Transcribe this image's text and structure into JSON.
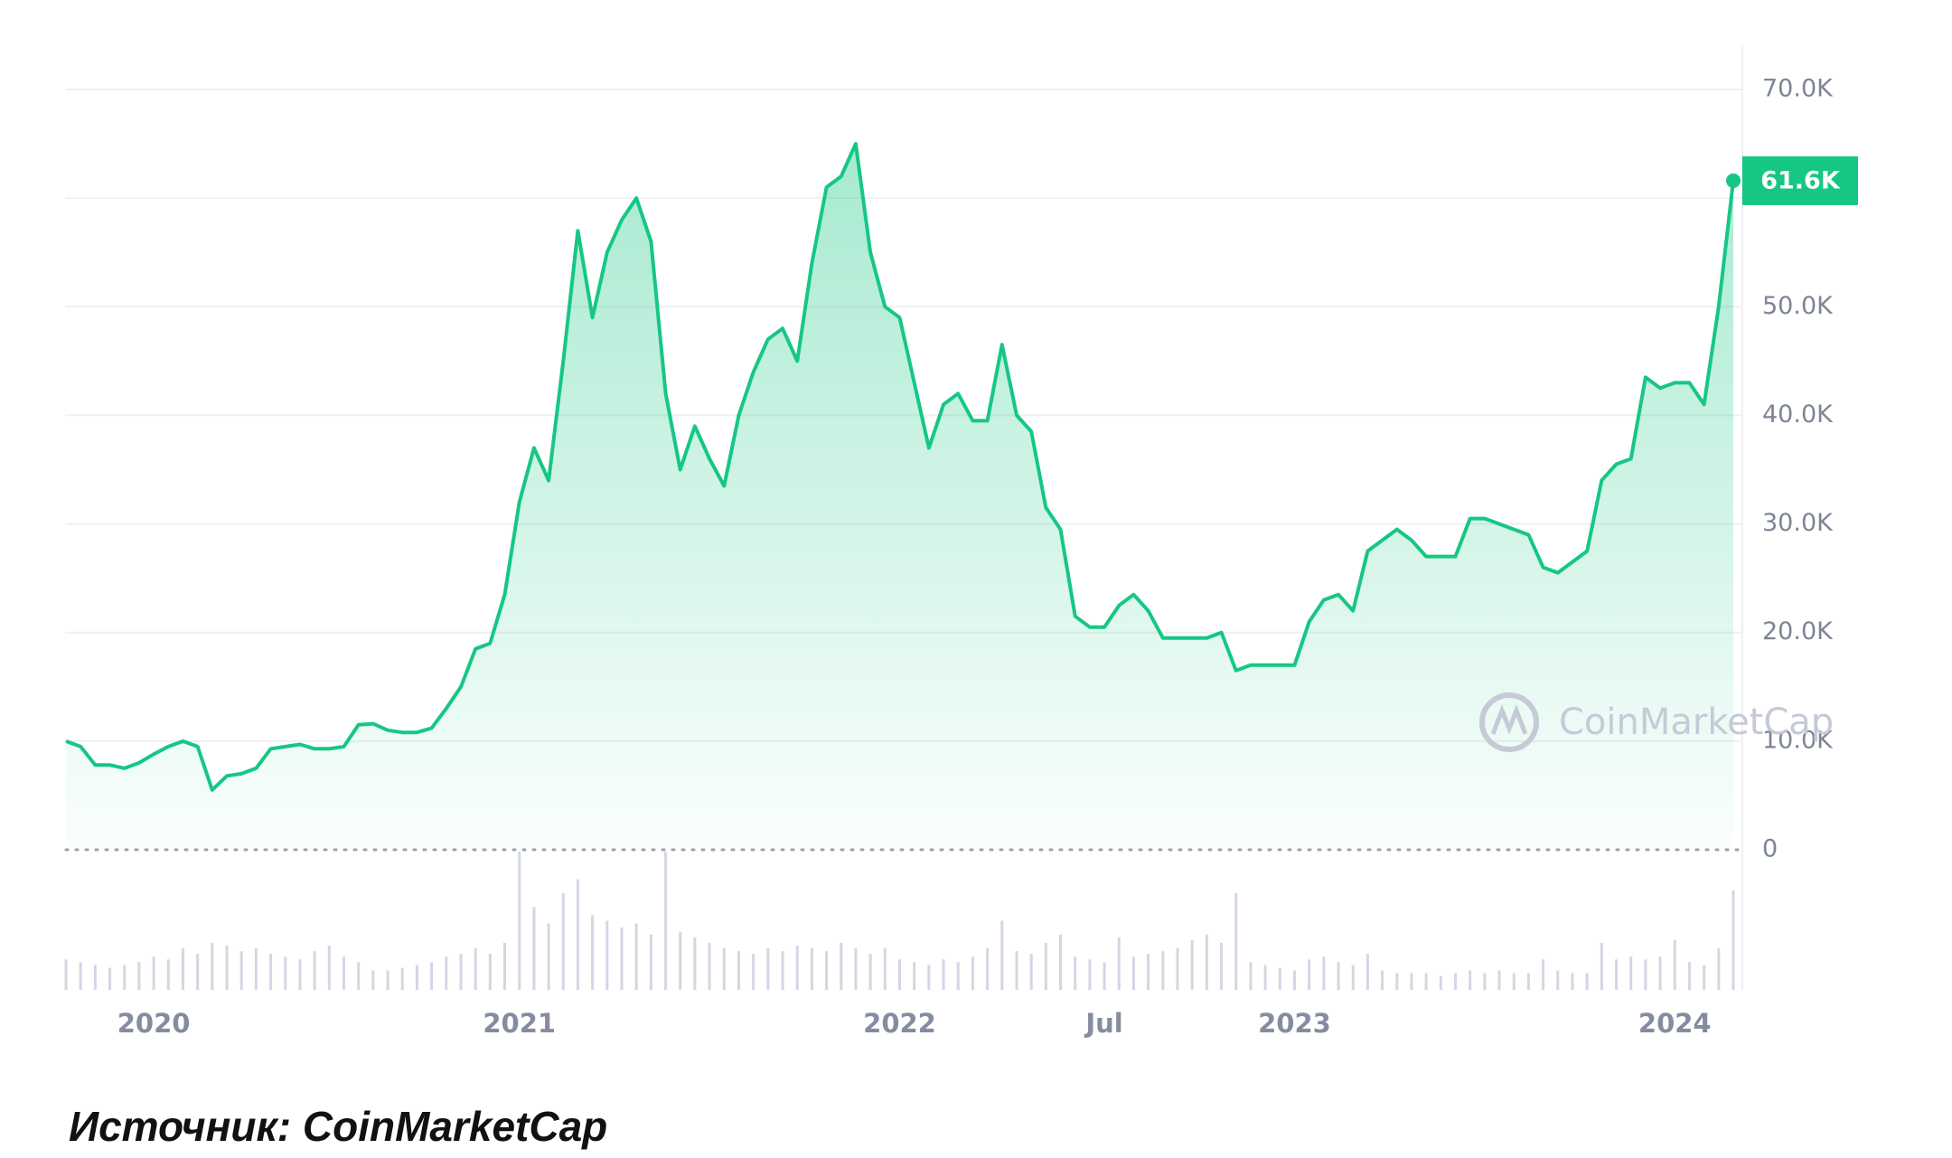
{
  "chart_data": {
    "type": "area",
    "categories": [
      null,
      null,
      null,
      null,
      null,
      null,
      "2020",
      null,
      null,
      null,
      null,
      null,
      null,
      null,
      null,
      null,
      null,
      null,
      null,
      null,
      null,
      null,
      null,
      null,
      null,
      null,
      null,
      null,
      null,
      null,
      null,
      "2021",
      null,
      null,
      null,
      null,
      null,
      null,
      null,
      null,
      null,
      null,
      null,
      null,
      null,
      null,
      null,
      null,
      null,
      null,
      null,
      null,
      null,
      null,
      null,
      null,
      null,
      "2022",
      null,
      null,
      null,
      null,
      null,
      null,
      null,
      null,
      null,
      null,
      null,
      null,
      null,
      "Jul",
      null,
      null,
      null,
      null,
      null,
      null,
      null,
      null,
      null,
      null,
      null,
      null,
      "2023",
      null,
      null,
      null,
      null,
      null,
      null,
      null,
      null,
      null,
      null,
      null,
      null,
      null,
      null,
      null,
      null,
      null,
      null,
      null,
      null,
      null,
      null,
      null,
      null,
      null,
      "2024",
      null,
      null,
      null,
      null
    ],
    "values": [
      10000,
      9500,
      7800,
      7800,
      7500,
      8000,
      8800,
      9500,
      10000,
      9500,
      5500,
      6800,
      7000,
      7500,
      9300,
      9500,
      9700,
      9300,
      9300,
      9500,
      11500,
      11600,
      11000,
      10800,
      10800,
      11200,
      13000,
      15000,
      18500,
      19000,
      23500,
      32000,
      37000,
      34000,
      45000,
      57000,
      49000,
      55000,
      58000,
      60000,
      56000,
      42000,
      35000,
      39000,
      36000,
      33500,
      40000,
      44000,
      47000,
      48000,
      45000,
      54000,
      61000,
      62000,
      65000,
      55000,
      50000,
      49000,
      43000,
      37000,
      41000,
      42000,
      39500,
      39500,
      46500,
      40000,
      38500,
      31500,
      29500,
      21500,
      20500,
      20500,
      22500,
      23500,
      22000,
      19500,
      19500,
      19500,
      19500,
      20000,
      16500,
      17000,
      17000,
      17000,
      17000,
      21000,
      23000,
      23500,
      22000,
      27500,
      28500,
      29500,
      28500,
      27000,
      27000,
      27000,
      30500,
      30500,
      30000,
      29500,
      29000,
      26000,
      25500,
      26500,
      27500,
      34000,
      35500,
      36000,
      43500,
      42500,
      43000,
      43000,
      41000,
      50000,
      61600
    ],
    "volume": [
      22,
      20,
      18,
      16,
      18,
      20,
      24,
      22,
      30,
      26,
      34,
      32,
      28,
      30,
      26,
      24,
      22,
      28,
      32,
      24,
      20,
      14,
      14,
      16,
      18,
      20,
      24,
      26,
      30,
      26,
      34,
      100,
      60,
      48,
      70,
      80,
      54,
      50,
      45,
      48,
      40,
      100,
      42,
      38,
      34,
      30,
      28,
      26,
      30,
      28,
      32,
      30,
      28,
      34,
      30,
      26,
      30,
      22,
      20,
      18,
      22,
      20,
      24,
      30,
      50,
      28,
      26,
      34,
      40,
      24,
      22,
      20,
      38,
      24,
      26,
      28,
      30,
      36,
      40,
      34,
      70,
      20,
      18,
      16,
      14,
      22,
      24,
      20,
      18,
      26,
      14,
      12,
      12,
      12,
      10,
      12,
      14,
      12,
      14,
      12,
      12,
      22,
      14,
      12,
      12,
      34,
      22,
      24,
      22,
      24,
      36,
      20,
      18,
      30,
      72
    ],
    "color": "#16c784",
    "current_price": {
      "value": 61600,
      "label": "61.6K"
    },
    "ylim": [
      0,
      70000
    ],
    "yticks": [
      0,
      {
        "value": 10000,
        "label": "10.0K"
      },
      {
        "value": 20000,
        "label": "20.0K"
      },
      {
        "value": 30000,
        "label": "30.0K"
      },
      {
        "value": 40000,
        "label": "40.0K"
      },
      {
        "value": 50000,
        "label": "50.0K"
      },
      {
        "value": 60000,
        "label": ""
      },
      {
        "value": 70000,
        "label": "70.0K"
      }
    ],
    "grid": true,
    "watermark": "CoinMarketCap",
    "source": "Источник: CoinMarketCap"
  }
}
